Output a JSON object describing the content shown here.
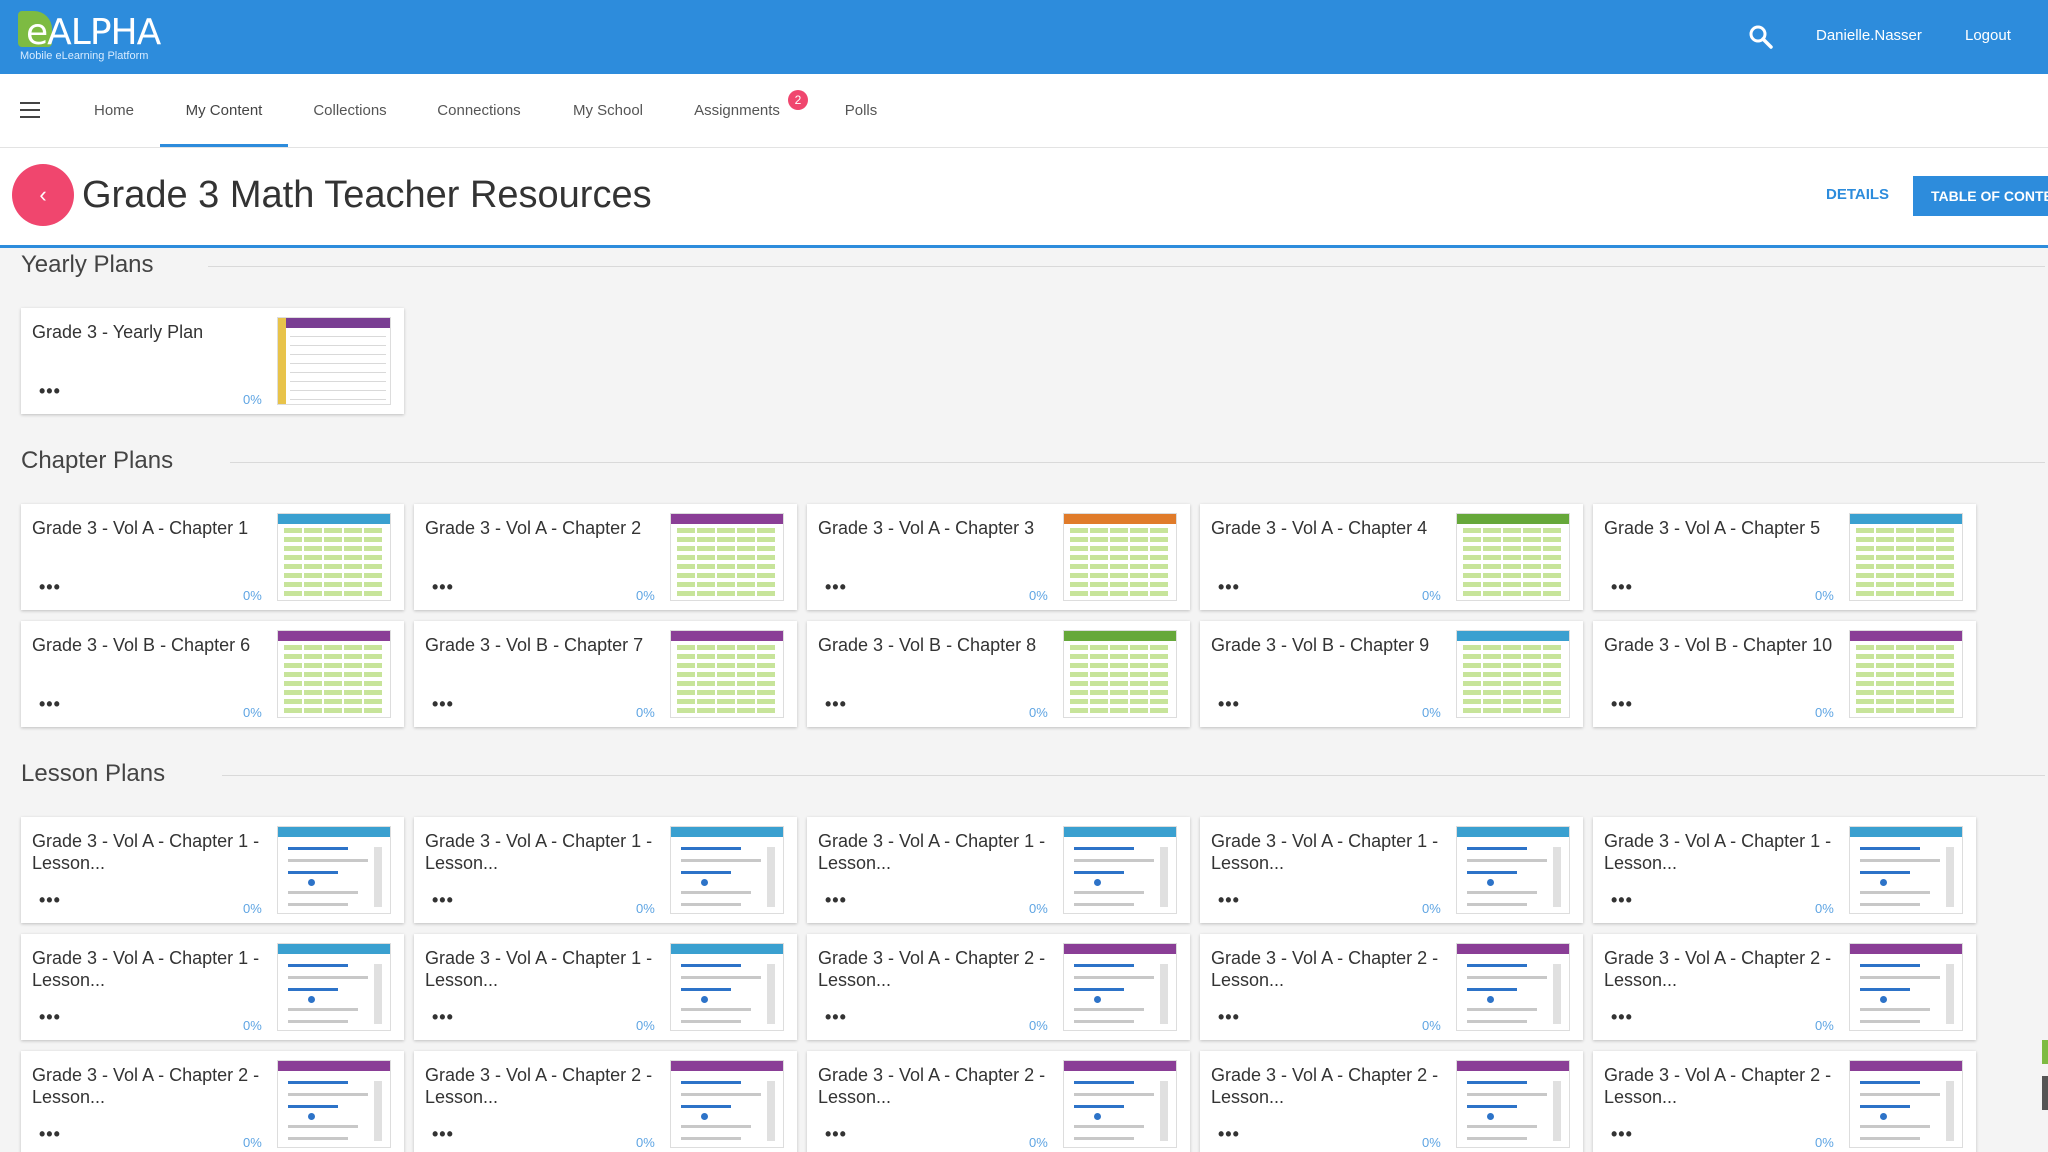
{
  "header": {
    "logo_title": "eALPHA",
    "logo_subtitle": "Mobile eLearning Platform",
    "user_name": "Danielle.Nasser",
    "logout_label": "Logout",
    "search_icon": "search-icon"
  },
  "nav": {
    "menu_icon": "hamburger-menu-icon",
    "tabs": [
      {
        "label": "Home"
      },
      {
        "label": "My Content",
        "active": true
      },
      {
        "label": "Collections"
      },
      {
        "label": "Connections"
      },
      {
        "label": "My School"
      },
      {
        "label": "Assignments",
        "badge": "2"
      },
      {
        "label": "Polls"
      }
    ]
  },
  "page": {
    "back_icon": "chevron-left-icon",
    "back_glyph": "‹",
    "title": "Grade 3 Math Teacher Resources",
    "details_label": "DETAILS",
    "toc_label": "TABLE OF CONTENTS"
  },
  "sections": [
    {
      "heading": "Yearly Plans",
      "cards": [
        {
          "title": "Grade 3 - Yearly Plan",
          "menu": "•••",
          "progress": "0%",
          "thumb": "yearly",
          "thumb_color": "#7a3e93"
        }
      ]
    },
    {
      "heading": "Chapter Plans",
      "cards": [
        {
          "title": "Grade 3 - Vol A - Chapter 1",
          "menu": "•••",
          "progress": "0%",
          "thumb": "chapter",
          "thumb_color": "#3aa0d0"
        },
        {
          "title": "Grade 3 - Vol A - Chapter 2",
          "menu": "•••",
          "progress": "0%",
          "thumb": "chapter",
          "thumb_color": "#8a3e96"
        },
        {
          "title": "Grade 3 - Vol A - Chapter 3",
          "menu": "•••",
          "progress": "0%",
          "thumb": "chapter",
          "thumb_color": "#e07b2a"
        },
        {
          "title": "Grade 3 - Vol A - Chapter 4",
          "menu": "•••",
          "progress": "0%",
          "thumb": "chapter",
          "thumb_color": "#66a83a"
        },
        {
          "title": "Grade 3 - Vol A - Chapter 5",
          "menu": "•••",
          "progress": "0%",
          "thumb": "chapter",
          "thumb_color": "#3aa0d0"
        },
        {
          "title": "Grade 3 - Vol B - Chapter 6",
          "menu": "•••",
          "progress": "0%",
          "thumb": "chapter",
          "thumb_color": "#8a3e96"
        },
        {
          "title": "Grade 3 - Vol B - Chapter 7",
          "menu": "•••",
          "progress": "0%",
          "thumb": "chapter",
          "thumb_color": "#8a3e96"
        },
        {
          "title": "Grade 3 - Vol B - Chapter 8",
          "menu": "•••",
          "progress": "0%",
          "thumb": "chapter",
          "thumb_color": "#66a83a"
        },
        {
          "title": "Grade 3 - Vol B - Chapter 9",
          "menu": "•••",
          "progress": "0%",
          "thumb": "chapter",
          "thumb_color": "#3aa0d0"
        },
        {
          "title": "Grade 3 - Vol B - Chapter 10",
          "menu": "•••",
          "progress": "0%",
          "thumb": "chapter",
          "thumb_color": "#8a3e96"
        }
      ]
    },
    {
      "heading": "Lesson Plans",
      "cards": [
        {
          "title": "Grade 3 - Vol A - Chapter 1 - Lesson...",
          "menu": "•••",
          "progress": "0%",
          "thumb": "lesson",
          "thumb_color": "#3aa0d0"
        },
        {
          "title": "Grade 3 - Vol A - Chapter 1 - Lesson...",
          "menu": "•••",
          "progress": "0%",
          "thumb": "lesson",
          "thumb_color": "#3aa0d0"
        },
        {
          "title": "Grade 3 - Vol A - Chapter 1 - Lesson...",
          "menu": "•••",
          "progress": "0%",
          "thumb": "lesson",
          "thumb_color": "#3aa0d0"
        },
        {
          "title": "Grade 3 - Vol A - Chapter 1 - Lesson...",
          "menu": "•••",
          "progress": "0%",
          "thumb": "lesson",
          "thumb_color": "#3aa0d0"
        },
        {
          "title": "Grade 3 - Vol A - Chapter 1 - Lesson...",
          "menu": "•••",
          "progress": "0%",
          "thumb": "lesson",
          "thumb_color": "#3aa0d0"
        },
        {
          "title": "Grade 3 - Vol A - Chapter 1 - Lesson...",
          "menu": "•••",
          "progress": "0%",
          "thumb": "lesson",
          "thumb_color": "#3aa0d0"
        },
        {
          "title": "Grade 3 - Vol A - Chapter 1 - Lesson...",
          "menu": "•••",
          "progress": "0%",
          "thumb": "lesson",
          "thumb_color": "#3aa0d0"
        },
        {
          "title": "Grade 3 - Vol A - Chapter 2 - Lesson...",
          "menu": "•••",
          "progress": "0%",
          "thumb": "lesson",
          "thumb_color": "#8a3e96"
        },
        {
          "title": "Grade 3 - Vol A - Chapter 2 - Lesson...",
          "menu": "•••",
          "progress": "0%",
          "thumb": "lesson",
          "thumb_color": "#8a3e96"
        },
        {
          "title": "Grade 3 - Vol A - Chapter 2 - Lesson...",
          "menu": "•••",
          "progress": "0%",
          "thumb": "lesson",
          "thumb_color": "#8a3e96"
        },
        {
          "title": "Grade 3 - Vol A - Chapter 2 - Lesson...",
          "menu": "•••",
          "progress": "0%",
          "thumb": "lesson",
          "thumb_color": "#8a3e96"
        },
        {
          "title": "Grade 3 - Vol A - Chapter 2 - Lesson...",
          "menu": "•••",
          "progress": "0%",
          "thumb": "lesson",
          "thumb_color": "#8a3e96"
        },
        {
          "title": "Grade 3 - Vol A - Chapter 2 - Lesson...",
          "menu": "•••",
          "progress": "0%",
          "thumb": "lesson",
          "thumb_color": "#8a3e96"
        },
        {
          "title": "Grade 3 - Vol A - Chapter 2 - Lesson...",
          "menu": "•••",
          "progress": "0%",
          "thumb": "lesson",
          "thumb_color": "#8a3e96"
        },
        {
          "title": "Grade 3 - Vol A - Chapter 2 - Lesson...",
          "menu": "•••",
          "progress": "0%",
          "thumb": "lesson",
          "thumb_color": "#8a3e96"
        }
      ]
    }
  ]
}
